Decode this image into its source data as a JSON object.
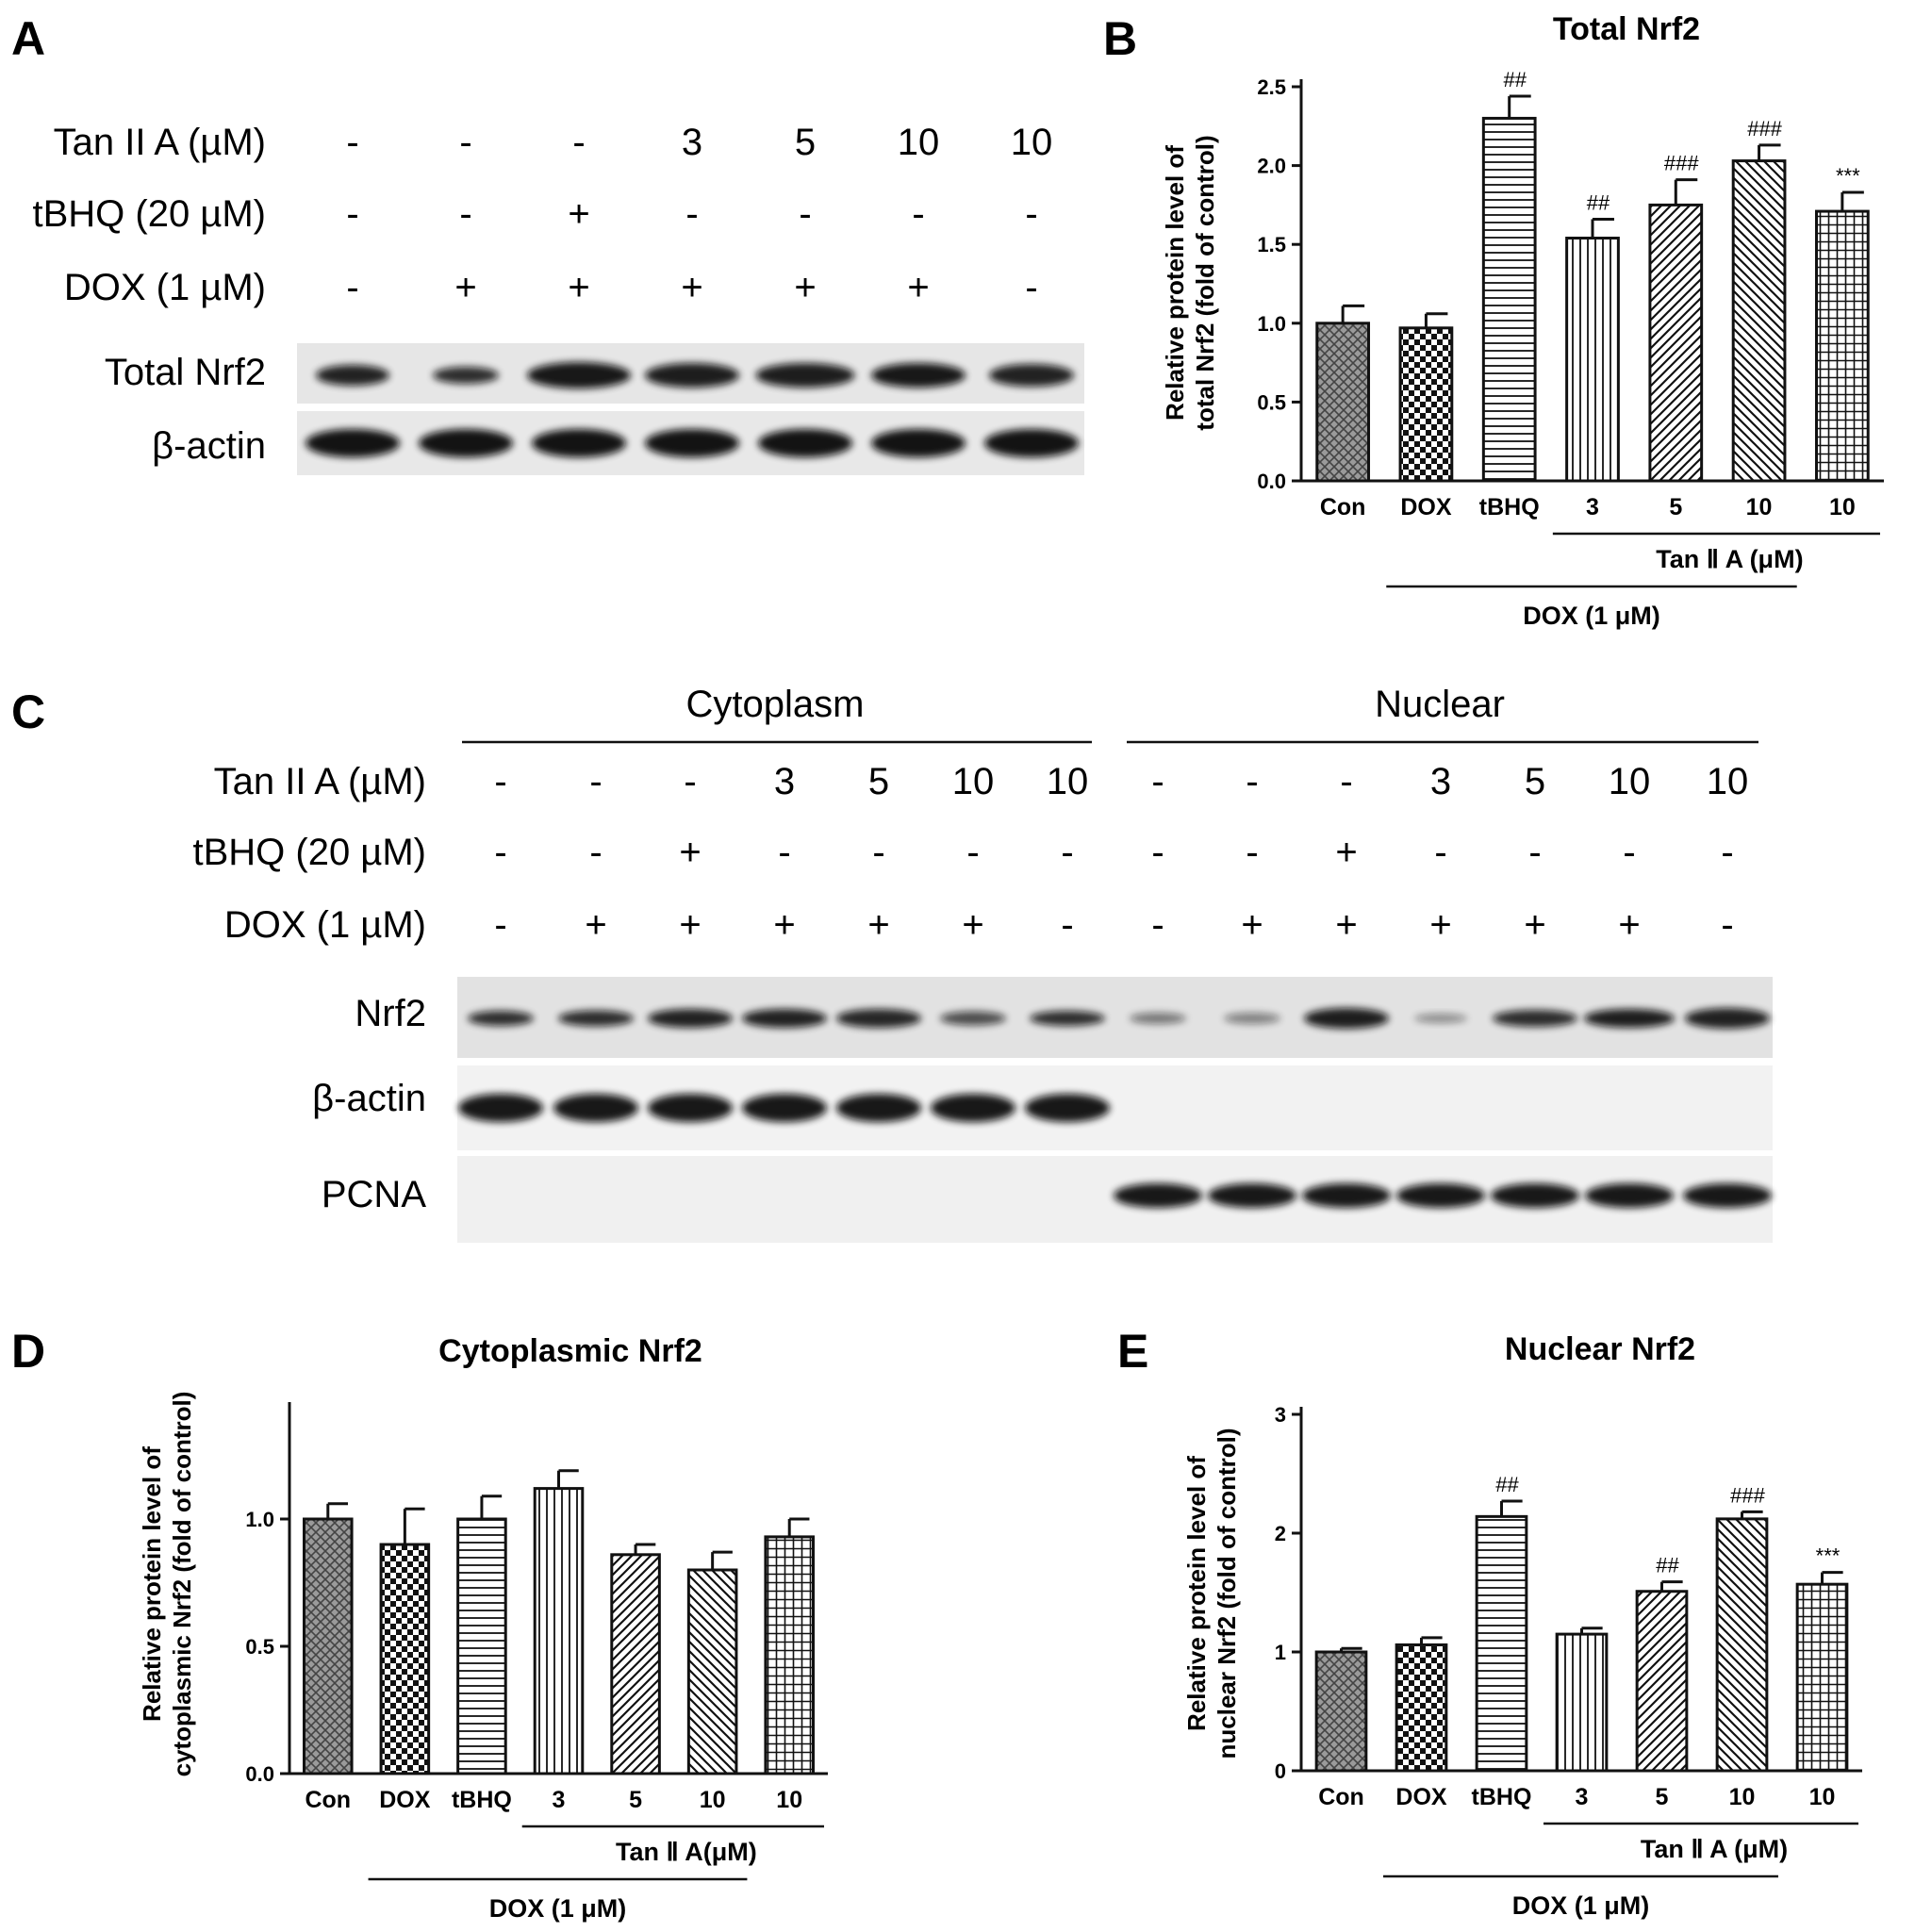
{
  "panels": [
    "A",
    "B",
    "C",
    "D",
    "E"
  ],
  "blot_a": {
    "conditions": [
      {
        "label": "Tan II A (µM)",
        "values": [
          "-",
          "-",
          "-",
          "3",
          "5",
          "10",
          "10"
        ]
      },
      {
        "label": "tBHQ (20 µM)",
        "values": [
          "-",
          "-",
          "+",
          "-",
          "-",
          "-",
          "-"
        ]
      },
      {
        "label": "DOX (1 µM)",
        "values": [
          "-",
          "+",
          "+",
          "+",
          "+",
          "+",
          "-"
        ]
      }
    ],
    "bands": [
      "Total Nrf2",
      "β-actin"
    ]
  },
  "blot_c": {
    "fractions": [
      "Cytoplasm",
      "Nuclear"
    ],
    "conditions": [
      {
        "label": "Tan II A (µM)",
        "values": [
          "-",
          "-",
          "-",
          "3",
          "5",
          "10",
          "10"
        ]
      },
      {
        "label": "tBHQ (20 µM)",
        "values": [
          "-",
          "-",
          "+",
          "-",
          "-",
          "-",
          "-"
        ]
      },
      {
        "label": "DOX (1 µM)",
        "values": [
          "-",
          "+",
          "+",
          "+",
          "+",
          "+",
          "-"
        ]
      }
    ],
    "bands": [
      "Nrf2",
      "β-actin",
      "PCNA"
    ]
  },
  "chart_data": [
    {
      "type": "bar",
      "title": "Total Nrf2",
      "ylabel": [
        "Relative protein level of",
        "total Nrf2 (fold of control)"
      ],
      "categories": [
        "Con",
        "DOX",
        "tBHQ",
        "3",
        "5",
        "10",
        "10"
      ],
      "values": [
        1.0,
        0.97,
        2.3,
        1.54,
        1.75,
        2.03,
        1.71
      ],
      "errors": [
        0.11,
        0.09,
        0.14,
        0.12,
        0.16,
        0.1,
        0.12
      ],
      "annotations": [
        "",
        "",
        "##",
        "##",
        "###",
        "###",
        "***"
      ],
      "ylim": [
        0,
        2.5
      ],
      "yticks": [
        "0.0",
        "0.5",
        "1.0",
        "1.5",
        "2.0",
        "2.5"
      ],
      "group_labels": {
        "tan": "Tan Ⅱ A (μM)",
        "dox": "DOX (1 μM)"
      }
    },
    {
      "type": "bar",
      "title": "Cytoplasmic Nrf2",
      "ylabel": [
        "Relative protein level of",
        "cytoplasmic Nrf2 (fold of control)"
      ],
      "categories": [
        "Con",
        "DOX",
        "tBHQ",
        "3",
        "5",
        "10",
        "10"
      ],
      "values": [
        1.0,
        0.9,
        1.0,
        1.12,
        0.86,
        0.8,
        0.93
      ],
      "errors": [
        0.06,
        0.14,
        0.09,
        0.07,
        0.04,
        0.07,
        0.07
      ],
      "annotations": [
        "",
        "",
        "",
        "",
        "",
        "",
        ""
      ],
      "ylim": [
        0,
        1.2
      ],
      "yticks": [
        "0.0",
        "0.5",
        "1.0"
      ],
      "group_labels": {
        "tan": "Tan Ⅱ A(μM)",
        "dox": "DOX (1 μM)"
      }
    },
    {
      "type": "bar",
      "title": "Nuclear Nrf2",
      "ylabel": [
        "Relative protein level of",
        "nuclear Nrf2 (fold of control)"
      ],
      "categories": [
        "Con",
        "DOX",
        "tBHQ",
        "3",
        "5",
        "10",
        "10"
      ],
      "values": [
        1.0,
        1.06,
        2.14,
        1.15,
        1.51,
        2.12,
        1.57
      ],
      "errors": [
        0.03,
        0.06,
        0.13,
        0.05,
        0.08,
        0.06,
        0.1
      ],
      "annotations": [
        "",
        "",
        "##",
        "",
        "##",
        "###",
        "***"
      ],
      "ylim": [
        0,
        3
      ],
      "yticks": [
        "0",
        "1",
        "2",
        "3"
      ],
      "group_labels": {
        "tan": "Tan Ⅱ A (μM)",
        "dox": "DOX (1 μM)"
      }
    }
  ]
}
